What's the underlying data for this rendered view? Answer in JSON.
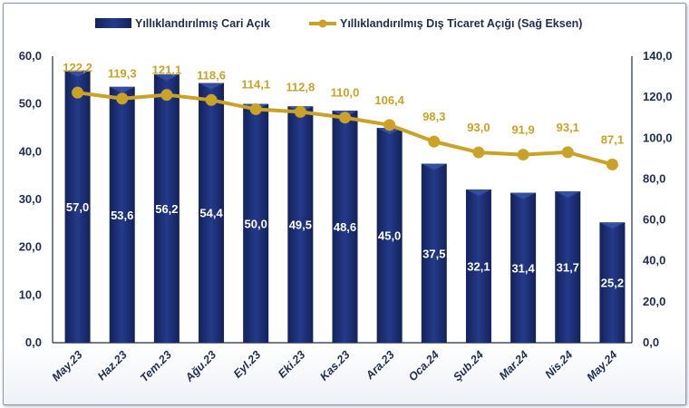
{
  "chart_data": {
    "type": "bar+line",
    "categories": [
      "May.23",
      "Haz.23",
      "Tem.23",
      "Ağu.23",
      "Eyl.23",
      "Eki.23",
      "Kas.23",
      "Ara.23",
      "Oca.24",
      "Şub.24",
      "Mar.24",
      "Nis.24",
      "May.24"
    ],
    "series": [
      {
        "name": "Yıllıklandırılmış Cari Açık",
        "type": "bar",
        "axis": "left",
        "color": "#1b2a6b",
        "values": [
          57.0,
          53.6,
          56.2,
          54.4,
          50.0,
          49.5,
          48.6,
          45.0,
          37.5,
          32.1,
          31.4,
          31.7,
          25.2
        ],
        "labels": [
          "57,0",
          "53,6",
          "56,2",
          "54,4",
          "50,0",
          "49,5",
          "48,6",
          "45,0",
          "37,5",
          "32,1",
          "31,4",
          "31,7",
          "25,2"
        ]
      },
      {
        "name": "Yıllıklandırılmış Dış Ticaret Açığı (Sağ Eksen)",
        "type": "line",
        "axis": "right",
        "color": "#c9a227",
        "values": [
          122.2,
          119.3,
          121.1,
          118.6,
          114.1,
          112.8,
          110.0,
          106.4,
          98.3,
          93.0,
          91.9,
          93.1,
          87.1
        ],
        "labels": [
          "122,2",
          "119,3",
          "121,1",
          "118,6",
          "114,1",
          "112,8",
          "110,0",
          "106,4",
          "98,3",
          "93,0",
          "91,9",
          "93,1",
          "87,1"
        ]
      }
    ],
    "ylim": [
      0,
      60
    ],
    "y2lim": [
      0,
      140
    ],
    "yticks": [
      "0,0",
      "10,0",
      "20,0",
      "30,0",
      "40,0",
      "50,0",
      "60,0"
    ],
    "y2ticks": [
      "0,0",
      "20,0",
      "40,0",
      "60,0",
      "80,0",
      "100,0",
      "120,0",
      "140,0"
    ],
    "legend": "top",
    "grid": false
  }
}
